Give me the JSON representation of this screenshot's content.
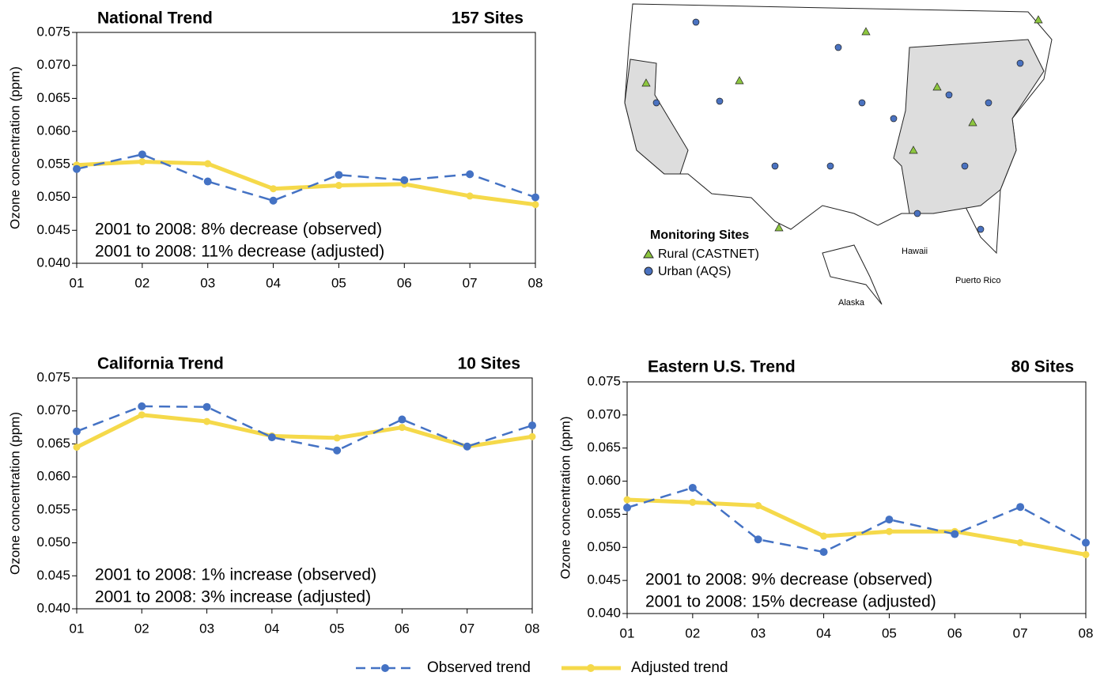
{
  "chart_data": [
    {
      "type": "line",
      "title": "National Trend",
      "subtitle": "157 Sites",
      "y_label": "Ozone concentration (ppm)",
      "annotations": [
        "2001 to 2008: 8% decrease (observed)",
        "2001 to 2008: 11% decrease (adjusted)"
      ],
      "categories": [
        "01",
        "02",
        "03",
        "04",
        "05",
        "06",
        "07",
        "08"
      ],
      "series": [
        {
          "name": "Observed trend",
          "color": "#4472c4",
          "linestyle": "dashed",
          "values": [
            0.0543,
            0.0565,
            0.0524,
            0.0495,
            0.0534,
            0.0526,
            0.0535,
            0.05
          ]
        },
        {
          "name": "Adjusted trend",
          "color": "#f5d94a",
          "linestyle": "solid",
          "values": [
            0.0549,
            0.0554,
            0.0551,
            0.0513,
            0.0518,
            0.052,
            0.0502,
            0.0489
          ]
        }
      ],
      "ylim": [
        0.04,
        0.075
      ],
      "yticks": [
        {
          "value": 0.04,
          "label": "0.040"
        },
        {
          "value": 0.045,
          "label": "0.045"
        },
        {
          "value": 0.05,
          "label": "0.050"
        },
        {
          "value": 0.055,
          "label": "0.055"
        },
        {
          "value": 0.06,
          "label": "0.060"
        },
        {
          "value": 0.065,
          "label": "0.065"
        },
        {
          "value": 0.07,
          "label": "0.070"
        },
        {
          "value": 0.075,
          "label": "0.075"
        }
      ]
    },
    {
      "type": "line",
      "title": "California Trend",
      "subtitle": "10 Sites",
      "y_label": "Ozone concentration (ppm)",
      "annotations": [
        "2001 to 2008: 1% increase (observed)",
        "2001 to 2008: 3% increase (adjusted)"
      ],
      "categories": [
        "01",
        "02",
        "03",
        "04",
        "05",
        "06",
        "07",
        "08"
      ],
      "series": [
        {
          "name": "Observed trend",
          "color": "#4472c4",
          "linestyle": "dashed",
          "values": [
            0.0669,
            0.0707,
            0.0706,
            0.066,
            0.064,
            0.0687,
            0.0646,
            0.0678
          ]
        },
        {
          "name": "Adjusted trend",
          "color": "#f5d94a",
          "linestyle": "solid",
          "values": [
            0.0645,
            0.0694,
            0.0684,
            0.0662,
            0.0659,
            0.0675,
            0.0646,
            0.0661
          ]
        }
      ],
      "ylim": [
        0.04,
        0.075
      ],
      "yticks": [
        {
          "value": 0.04,
          "label": "0.040"
        },
        {
          "value": 0.045,
          "label": "0.045"
        },
        {
          "value": 0.05,
          "label": "0.050"
        },
        {
          "value": 0.055,
          "label": "0.055"
        },
        {
          "value": 0.06,
          "label": "0.060"
        },
        {
          "value": 0.065,
          "label": "0.065"
        },
        {
          "value": 0.07,
          "label": "0.070"
        },
        {
          "value": 0.075,
          "label": "0.075"
        }
      ]
    },
    {
      "type": "line",
      "title": "Eastern U.S. Trend",
      "subtitle": "80 Sites",
      "y_label": "Ozone concentration (ppm)",
      "annotations": [
        "2001 to 2008: 9% decrease (observed)",
        "2001 to 2008: 15% decrease (adjusted)"
      ],
      "categories": [
        "01",
        "02",
        "03",
        "04",
        "05",
        "06",
        "07",
        "08"
      ],
      "series": [
        {
          "name": "Observed trend",
          "color": "#4472c4",
          "linestyle": "dashed",
          "values": [
            0.056,
            0.059,
            0.0512,
            0.0493,
            0.0542,
            0.052,
            0.0561,
            0.0507
          ]
        },
        {
          "name": "Adjusted trend",
          "color": "#f5d94a",
          "linestyle": "solid",
          "values": [
            0.0572,
            0.0568,
            0.0563,
            0.0517,
            0.0524,
            0.0524,
            0.0507,
            0.0489
          ]
        }
      ],
      "ylim": [
        0.04,
        0.075
      ],
      "yticks": [
        {
          "value": 0.04,
          "label": "0.040"
        },
        {
          "value": 0.045,
          "label": "0.045"
        },
        {
          "value": 0.05,
          "label": "0.050"
        },
        {
          "value": 0.055,
          "label": "0.055"
        },
        {
          "value": 0.06,
          "label": "0.060"
        },
        {
          "value": 0.065,
          "label": "0.065"
        },
        {
          "value": 0.07,
          "label": "0.070"
        },
        {
          "value": 0.075,
          "label": "0.075"
        }
      ]
    }
  ],
  "map": {
    "legend_title": "Monitoring Sites",
    "legend": [
      "Rural (CASTNET)",
      "Urban (AQS)"
    ],
    "labels": [
      "Hawaii",
      "Puerto Rico",
      "Alaska"
    ]
  }
}
